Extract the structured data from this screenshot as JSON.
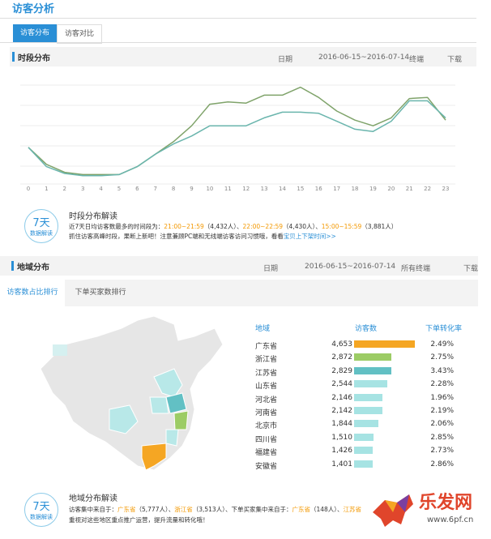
{
  "header": {
    "title": "访客分析",
    "tabs": [
      "访客分布",
      "访客对比"
    ]
  },
  "time_section": {
    "title": "时段分布",
    "date_label": "日期",
    "date_range": "2016-06-15~2016-07-14",
    "terminal": "终端",
    "download": "下载",
    "chart": {
      "type": "line",
      "x": [
        0,
        1,
        2,
        3,
        4,
        5,
        6,
        7,
        8,
        9,
        10,
        11,
        12,
        13,
        14,
        15,
        16,
        17,
        18,
        19,
        20,
        21,
        22,
        23
      ],
      "xlim": [
        0,
        23
      ],
      "xticks": [
        0,
        1,
        2,
        3,
        4,
        5,
        6,
        7,
        8,
        9,
        10,
        11,
        12,
        13,
        14,
        15,
        16,
        17,
        18,
        19,
        20,
        21,
        22,
        23
      ],
      "ylim": [
        0,
        100
      ],
      "series": [
        {
          "color": "#7fa36a",
          "values": [
            38,
            23,
            16,
            14,
            14,
            14,
            21,
            32,
            43,
            57,
            76,
            78,
            77,
            84,
            84,
            91,
            82,
            70,
            62,
            57,
            64,
            81,
            82,
            62
          ]
        },
        {
          "color": "#6ab5ad",
          "values": [
            38,
            21,
            15,
            13,
            13,
            14,
            21,
            32,
            41,
            48,
            57,
            57,
            57,
            64,
            69,
            69,
            68,
            61,
            54,
            52,
            61,
            79,
            79,
            64
          ]
        }
      ]
    },
    "summary": {
      "badge_days": "7天",
      "badge_label": "数据解读",
      "title": "时段分布解读",
      "line1": [
        "近7天日均访客数最多的时间段为：",
        "21:00~21:59",
        "（4,432人）、",
        "22:00~22:59",
        "（4,430人）、",
        "15:00~15:59",
        "（3,881人）"
      ],
      "line2": [
        "抓住访客高峰时段，果断上新吧！注意兼顾PC端和无线端访客访问习惯哦，看看",
        "宝贝上下架时间>>"
      ]
    }
  },
  "region_section": {
    "title": "地域分布",
    "date_label": "日期",
    "date_range": "2016-06-15~2016-07-14",
    "terminal": "所有终端",
    "download": "下载",
    "tabs": [
      "访客数占比排行",
      "下单买家数排行"
    ],
    "table": {
      "headers": [
        "地域",
        "访客数",
        "下单转化率"
      ],
      "regions": [
        "广东省",
        "浙江省",
        "江苏省",
        "山东省",
        "河北省",
        "河南省",
        "北京市",
        "四川省",
        "福建省",
        "安徽省"
      ],
      "visitors": [
        4653,
        2872,
        2829,
        2544,
        2146,
        2142,
        1844,
        1510,
        1426,
        1401
      ],
      "visitor_labels": [
        "4,653",
        "2,872",
        "2,829",
        "2,544",
        "2,146",
        "2,142",
        "1,844",
        "1,510",
        "1,426",
        "1,401"
      ],
      "rates": [
        "2.49%",
        "2.75%",
        "3.43%",
        "2.28%",
        "1.96%",
        "2.19%",
        "2.06%",
        "2.85%",
        "2.73%",
        "2.86%"
      ],
      "colors": [
        "#f5a623",
        "#9ccc65",
        "#62c0c4",
        "#a6e3e3",
        "#a6e3e3",
        "#a6e3e3",
        "#a6e3e3",
        "#a6e3e3",
        "#a6e3e3",
        "#a6e3e3"
      ]
    },
    "summary": {
      "badge_days": "7天",
      "badge_label": "数据解读",
      "title": "地域分布解读",
      "line1": [
        "访客集中来自于：",
        "广东省",
        "（5,777人）、",
        "浙江省",
        "（3,513人）、下单买家集中来自于：",
        "广东省",
        "（148人）、",
        "江苏省"
      ],
      "line2": "重视对这些地区重点推广运营，提升流量和转化哦！"
    }
  },
  "watermark": {
    "brand": "乐发网",
    "url": "www.6pf.cn"
  }
}
